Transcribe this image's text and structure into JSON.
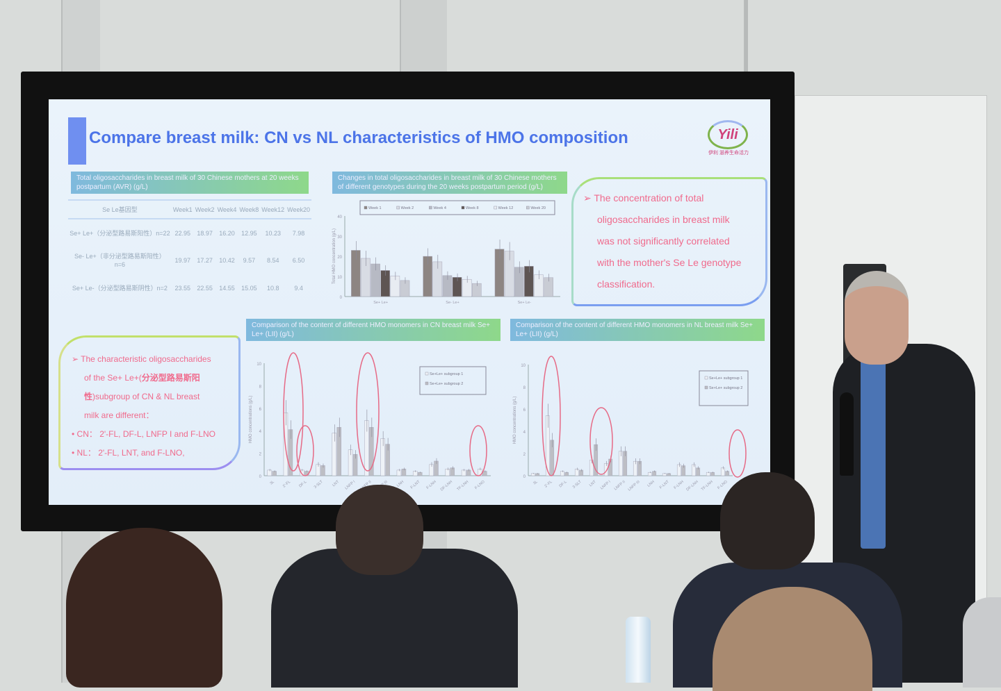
{
  "slide": {
    "title": "Compare breast milk: CN vs NL characteristics of HMO composition",
    "logo_text": "Yili",
    "logo_subtitle": "伊利 滋养生命活力",
    "table_header": "Total oligosaccharides in breast milk of 30 Chinese mothers at 20 weeks postpartum (AVR) (g/L)",
    "table": {
      "columns": [
        "Se Le基因型",
        "Week1",
        "Week2",
        "Week4",
        "Week8",
        "Week12",
        "Week20"
      ],
      "rows": [
        {
          "group": "Se+ Le+（分泌型路易斯阳性）n=22",
          "values": [
            "22.95",
            "18.97",
            "16.20",
            "12.95",
            "10.23",
            "7.98"
          ]
        },
        {
          "group": "Se- Le+（非分泌型路易斯阳性）n=6",
          "values": [
            "19.97",
            "17.27",
            "10.42",
            "9.57",
            "8.54",
            "6.50"
          ]
        },
        {
          "group": "Se+ Le-（分泌型路易斯阴性）n=2",
          "values": [
            "23.55",
            "22.55",
            "14.55",
            "15.05",
            "10.8",
            "9.4"
          ]
        }
      ]
    },
    "chart1_header": "Changes in total oligosaccharides in breast milk of 30 Chinese mothers of different genotypes during the 20 weeks postpartum period (g/L)",
    "conclusion1": [
      "The concentration of total",
      "oligosaccharides in breast milk",
      "was not significantly correlated",
      "with the mother's Se Le genotype",
      "classification."
    ],
    "conclusion2": {
      "line1": "The characteristic oligosaccharides",
      "line2_a": "of the Se+ Le+(",
      "line2_b": "分泌型路易斯阳",
      "line3_a": "性",
      "line3_b": ")subgroup of CN & NL breast",
      "line4": "milk are different：",
      "bullet_cn": "CN：  2'-FL, DF-L, LNFP I and F-LNO",
      "bullet_nl": "NL：  2'-FL, LNT, and F-LNO,"
    },
    "chart2_header": "Comparison of the content of different HMO monomers in CN breast milk Se+ Le+ (LII) (g/L)",
    "chart3_header": "Comparison of the content of different HMO monomers in NL breast milk Se+ Le+ (LII) (g/L)"
  },
  "chart_data": [
    {
      "type": "bar",
      "title": "",
      "ylabel": "Total HMO concentration (g/L)",
      "ylim": [
        0,
        40
      ],
      "yticks": [
        "0",
        "10",
        "20",
        "30",
        "40"
      ],
      "categories": [
        "Se+ Le+",
        "Se- Le+",
        "Se+ Le-"
      ],
      "series": [
        {
          "name": "Week 1",
          "values": [
            22.95,
            19.97,
            23.55
          ],
          "color": "#8d8582"
        },
        {
          "name": "Week 2",
          "values": [
            18.97,
            17.27,
            22.55
          ],
          "color": "#d8dce4"
        },
        {
          "name": "Week 4",
          "values": [
            16.2,
            10.42,
            14.55
          ],
          "color": "#b7bac4"
        },
        {
          "name": "Week 8",
          "values": [
            12.95,
            9.57,
            15.05
          ],
          "color": "#5e5553"
        },
        {
          "name": "Week 12",
          "values": [
            10.23,
            8.54,
            10.8
          ],
          "color": "#e8ecf2"
        },
        {
          "name": "Week 20",
          "values": [
            7.98,
            6.5,
            9.4
          ],
          "color": "#c9ccd4"
        }
      ]
    },
    {
      "type": "bar",
      "ylabel": "HMO concentrations (g/L)",
      "ylim": [
        0,
        10
      ],
      "yticks": [
        "0",
        "2",
        "4",
        "6",
        "8",
        "10"
      ],
      "categories": [
        "3L",
        "2'-FL",
        "DF-L",
        "3-SLT",
        "LNT",
        "LNFP I",
        "LNFP II",
        "LNFP III",
        "LNH",
        "F-LNT",
        "F-LNH",
        "DF-LNH",
        "TF-LNH",
        "F-LNO"
      ],
      "series": [
        {
          "name": "Se+Le+ subgroup 1",
          "values": [
            0.5,
            5.6,
            0.5,
            1.0,
            3.8,
            2.3,
            4.9,
            3.3,
            0.5,
            0.4,
            1.0,
            0.6,
            0.5,
            0.6
          ],
          "color": "#eef2f7"
        },
        {
          "name": "Se+Le+ subgroup 2",
          "values": [
            0.4,
            4.1,
            0.4,
            0.9,
            4.3,
            1.9,
            4.3,
            2.8,
            0.6,
            0.3,
            1.3,
            0.7,
            0.5,
            0.4
          ],
          "color": "#bdbec4"
        }
      ]
    },
    {
      "type": "bar",
      "ylabel": "HMO concentrations (g/L)",
      "ylim": [
        0,
        10
      ],
      "yticks": [
        "0",
        "2",
        "4",
        "6",
        "8",
        "10"
      ],
      "categories": [
        "3L",
        "2'-FL",
        "DF-L",
        "3-SLT",
        "LNT",
        "LNFP I",
        "LNFP II",
        "LNFP III",
        "LNH",
        "F-LNT",
        "F-LNH",
        "DF-LNH",
        "TF-LNH",
        "F-LNO"
      ],
      "series": [
        {
          "name": "Se+Le+ subgroup 1",
          "values": [
            0.2,
            5.4,
            0.4,
            0.6,
            1.4,
            1.1,
            2.2,
            1.3,
            0.3,
            0.2,
            1.0,
            1.0,
            0.3,
            0.7
          ],
          "color": "#eef2f7"
        },
        {
          "name": "Se+Le+ subgroup 2",
          "values": [
            0.2,
            3.2,
            0.3,
            0.5,
            2.8,
            1.5,
            2.2,
            1.3,
            0.4,
            0.2,
            0.9,
            0.7,
            0.3,
            0.4
          ],
          "color": "#bdbec4"
        }
      ]
    }
  ],
  "colors": {
    "title": "#4c74e8",
    "highlight_text": "#f06a8c",
    "screen_bg": "#e6f0fa",
    "wall": "#d9dcda"
  }
}
